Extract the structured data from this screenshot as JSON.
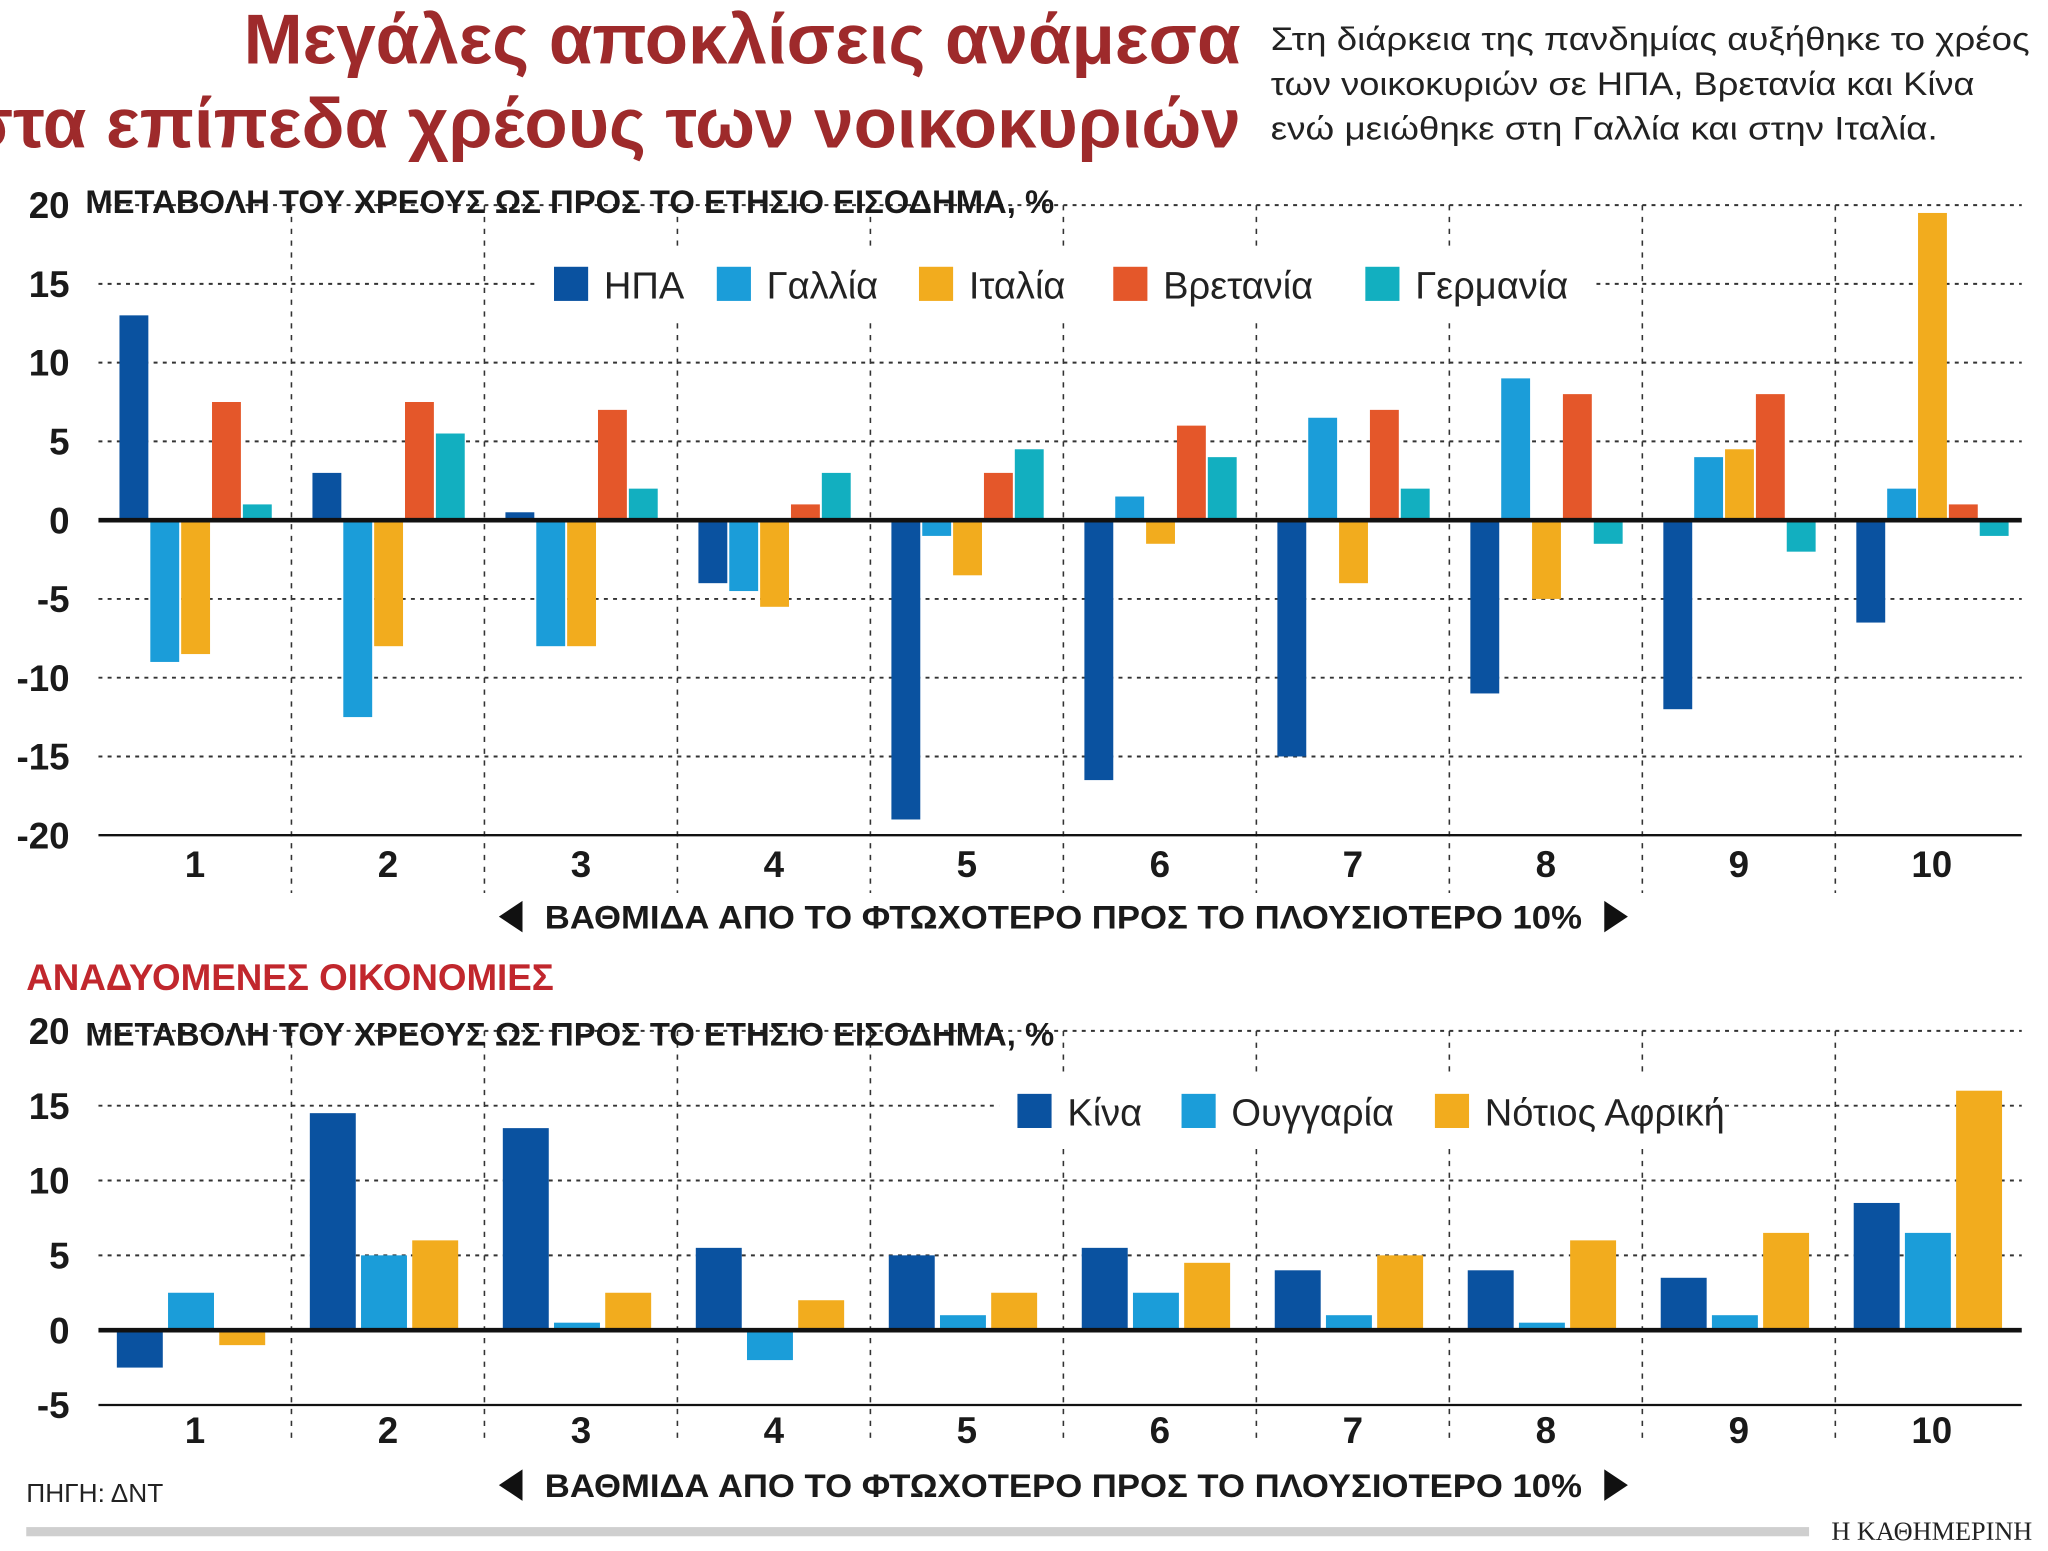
{
  "header": {
    "title_line1": "Μεγάλες αποκλίσεις ανάμεσα",
    "title_line2": "στα επίπεδα χρέους των νοικοκυριών",
    "subtitle_lines": [
      "Στη διάρκεια της πανδημίας αυξήθηκε το χρέος",
      "των νοικοκυριών σε ΗΠΑ, Βρετανία και Κίνα",
      "ενώ μειώθηκε στη Γαλλία και στην Ιταλία."
    ]
  },
  "section2_title": "ΑΝΑΔΥΟΜΕΝΕΣ ΟΙΚΟΝΟΜΙΕΣ",
  "source": "ΠΗΓΗ: ΔΝΤ",
  "brand": "Η ΚΑΘΗΜΕΡΙΝΗ",
  "chart_data": [
    {
      "type": "bar",
      "ylabel": "ΜΕΤΑΒΟΛΗ ΤΟΥ ΧΡΕΟΥΣ ΩΣ ΠΡΟΣ ΤΟ ΕΤΗΣΙΟ ΕΙΣΟΔΗΜΑ, %",
      "xlabel": "ΒΑΘΜΙΔΑ ΑΠΟ ΤΟ ΦΤΩΧΟΤΕΡΟ ΠΡΟΣ ΤΟ ΠΛΟΥΣΙΟΤΕΡΟ 10%",
      "ylim": [
        -20,
        20
      ],
      "yticks": [
        "20",
        "15",
        "10",
        "5",
        "0",
        "-5",
        "-10",
        "-15",
        "-20"
      ],
      "grid": true,
      "legend_position": "top",
      "categories": [
        "1",
        "2",
        "3",
        "4",
        "5",
        "6",
        "7",
        "8",
        "9",
        "10"
      ],
      "series": [
        {
          "name": "ΗΠΑ",
          "color": "#0a52a0",
          "values": [
            13,
            3,
            0.5,
            -4,
            -19,
            -16.5,
            -15,
            -11,
            -12,
            -6.5
          ]
        },
        {
          "name": "Γαλλία",
          "color": "#1b9dd9",
          "values": [
            -9,
            -12.5,
            -8,
            -4.5,
            -1,
            1.5,
            6.5,
            9,
            4,
            2
          ]
        },
        {
          "name": "Ιταλία",
          "color": "#f2ac1e",
          "values": [
            -8.5,
            -8,
            -8,
            -5.5,
            -3.5,
            -1.5,
            -4,
            -5,
            4.5,
            19.5
          ]
        },
        {
          "name": "Βρετανία",
          "color": "#e4572a",
          "values": [
            7.5,
            7.5,
            7,
            1,
            3,
            6,
            7,
            8,
            8,
            1
          ]
        },
        {
          "name": "Γερμανία",
          "color": "#12afc0",
          "values": [
            1,
            5.5,
            2,
            3,
            4.5,
            4,
            2,
            -1.5,
            -2,
            -1
          ]
        }
      ]
    },
    {
      "type": "bar",
      "ylabel": "ΜΕΤΑΒΟΛΗ ΤΟΥ ΧΡΕΟΥΣ ΩΣ ΠΡΟΣ ΤΟ ΕΤΗΣΙΟ ΕΙΣΟΔΗΜΑ, %",
      "xlabel": "ΒΑΘΜΙΔΑ ΑΠΟ ΤΟ ΦΤΩΧΟΤΕΡΟ ΠΡΟΣ ΤΟ ΠΛΟΥΣΙΟΤΕΡΟ 10%",
      "ylim": [
        -5,
        20
      ],
      "yticks": [
        "20",
        "15",
        "10",
        "5",
        "0",
        "-5"
      ],
      "grid": true,
      "legend_position": "top-right",
      "categories": [
        "1",
        "2",
        "3",
        "4",
        "5",
        "6",
        "7",
        "8",
        "9",
        "10"
      ],
      "series": [
        {
          "name": "Κίνα",
          "color": "#0a52a0",
          "values": [
            -2.5,
            14.5,
            13.5,
            5.5,
            5,
            5.5,
            4,
            4,
            3.5,
            8.5
          ]
        },
        {
          "name": "Ουγγαρία",
          "color": "#1b9dd9",
          "values": [
            2.5,
            5,
            0.5,
            -2,
            1,
            2.5,
            1,
            0.5,
            1,
            6.5
          ]
        },
        {
          "name": "Νότιος Αφρική",
          "color": "#f2ac1e",
          "values": [
            -1,
            6,
            2.5,
            2,
            2.5,
            4.5,
            5,
            6,
            6.5,
            16
          ]
        }
      ]
    }
  ]
}
